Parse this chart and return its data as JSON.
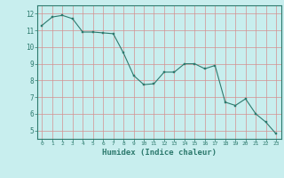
{
  "x": [
    0,
    1,
    2,
    3,
    4,
    5,
    6,
    7,
    8,
    9,
    10,
    11,
    12,
    13,
    14,
    15,
    16,
    17,
    18,
    19,
    20,
    21,
    22,
    23
  ],
  "y": [
    11.3,
    11.8,
    11.9,
    11.7,
    10.9,
    10.9,
    10.85,
    10.8,
    9.65,
    8.3,
    7.75,
    7.8,
    8.5,
    8.5,
    9.0,
    9.0,
    8.7,
    8.9,
    6.7,
    6.5,
    6.9,
    6.0,
    5.5,
    4.8
  ],
  "line_color": "#2d7a6e",
  "marker_color": "#2d7a6e",
  "bg_color": "#c8eeee",
  "grid_color": "#d49090",
  "axis_color": "#2d7a6e",
  "tick_color": "#2d7a6e",
  "xlabel": "Humidex (Indice chaleur)",
  "xlim": [
    -0.5,
    23.5
  ],
  "ylim": [
    4.5,
    12.5
  ],
  "yticks": [
    5,
    6,
    7,
    8,
    9,
    10,
    11,
    12
  ],
  "xticks": [
    0,
    1,
    2,
    3,
    4,
    5,
    6,
    7,
    8,
    9,
    10,
    11,
    12,
    13,
    14,
    15,
    16,
    17,
    18,
    19,
    20,
    21,
    22,
    23
  ]
}
